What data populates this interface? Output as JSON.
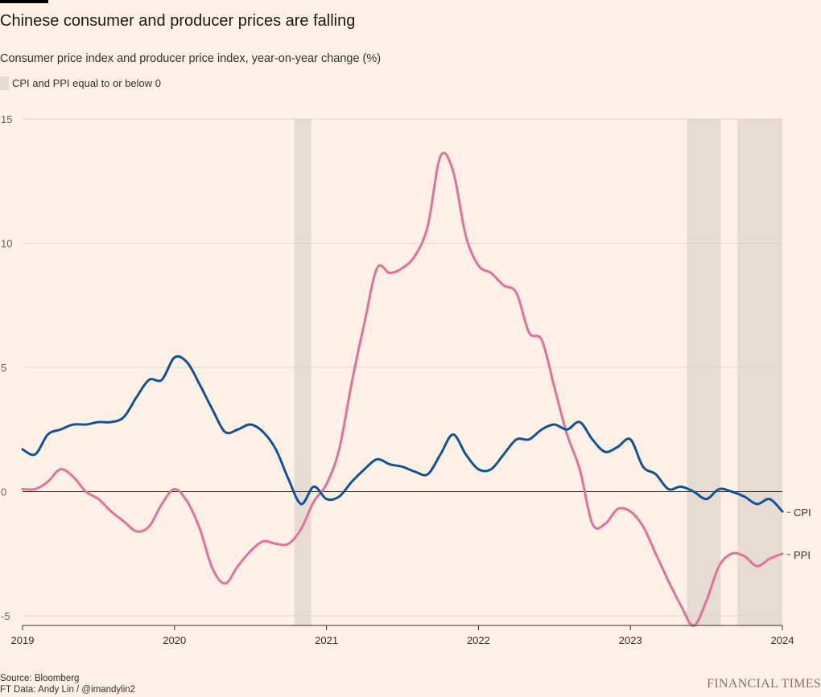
{
  "title": "Chinese consumer and producer prices are falling",
  "subtitle": "Consumer price index and producer price index, year-on-year change (%)",
  "legend": {
    "shaded_label": "CPI and PPI equal to or below 0"
  },
  "footer": {
    "source": "Source: Bloomberg",
    "credit": "FT Data: Andy Lin / @imandylin2",
    "brand": "FINANCIAL TIMES"
  },
  "colors": {
    "background": "#fff1e5",
    "cpi": "#0f5499",
    "ppi": "#e3719c",
    "shade": "#e6dcd2",
    "grid": "#d6cfc8",
    "zero_line": "#33302e"
  },
  "chart_data": {
    "type": "line",
    "title": "Chinese consumer and producer prices are falling",
    "subtitle": "Consumer price index and producer price index, year-on-year change (%)",
    "x_ticks": [
      "2019",
      "2020",
      "2021",
      "2022",
      "2023",
      "2024"
    ],
    "y_ticks": [
      "15",
      "10",
      "5",
      "0",
      "-5"
    ],
    "xlim": [
      "2019-01",
      "2024-01"
    ],
    "ylim": [
      -5.5,
      15
    ],
    "grid": true,
    "x": [
      "2019-01",
      "2019-02",
      "2019-03",
      "2019-04",
      "2019-05",
      "2019-06",
      "2019-07",
      "2019-08",
      "2019-09",
      "2019-10",
      "2019-11",
      "2019-12",
      "2020-01",
      "2020-02",
      "2020-03",
      "2020-04",
      "2020-05",
      "2020-06",
      "2020-07",
      "2020-08",
      "2020-09",
      "2020-10",
      "2020-11",
      "2020-12",
      "2021-01",
      "2021-02",
      "2021-03",
      "2021-04",
      "2021-05",
      "2021-06",
      "2021-07",
      "2021-08",
      "2021-09",
      "2021-10",
      "2021-11",
      "2021-12",
      "2022-01",
      "2022-02",
      "2022-03",
      "2022-04",
      "2022-05",
      "2022-06",
      "2022-07",
      "2022-08",
      "2022-09",
      "2022-10",
      "2022-11",
      "2022-12",
      "2023-01",
      "2023-02",
      "2023-03",
      "2023-04",
      "2023-05",
      "2023-06",
      "2023-07",
      "2023-08",
      "2023-09",
      "2023-10",
      "2023-11",
      "2023-12",
      "2024-01"
    ],
    "series": [
      {
        "name": "CPI",
        "values": [
          1.7,
          1.5,
          2.3,
          2.5,
          2.7,
          2.7,
          2.8,
          2.8,
          3.0,
          3.8,
          4.5,
          4.5,
          5.4,
          5.2,
          4.3,
          3.3,
          2.4,
          2.5,
          2.7,
          2.4,
          1.7,
          0.5,
          -0.5,
          0.2,
          -0.3,
          -0.2,
          0.4,
          0.9,
          1.3,
          1.1,
          1.0,
          0.8,
          0.7,
          1.5,
          2.3,
          1.5,
          0.9,
          0.9,
          1.5,
          2.1,
          2.1,
          2.5,
          2.7,
          2.5,
          2.8,
          2.1,
          1.6,
          1.8,
          2.1,
          1.0,
          0.7,
          0.1,
          0.2,
          0.0,
          -0.3,
          0.1,
          0.0,
          -0.2,
          -0.5,
          -0.3,
          -0.8
        ]
      },
      {
        "name": "PPI",
        "values": [
          0.1,
          0.1,
          0.4,
          0.9,
          0.6,
          0.0,
          -0.3,
          -0.8,
          -1.2,
          -1.6,
          -1.4,
          -0.5,
          0.1,
          -0.4,
          -1.5,
          -3.1,
          -3.7,
          -3.0,
          -2.4,
          -2.0,
          -2.1,
          -2.1,
          -1.5,
          -0.4,
          0.3,
          1.7,
          4.4,
          6.8,
          9.0,
          8.8,
          9.0,
          9.5,
          10.7,
          13.5,
          12.9,
          10.3,
          9.1,
          8.8,
          8.3,
          8.0,
          6.4,
          6.1,
          4.2,
          2.3,
          0.9,
          -1.3,
          -1.3,
          -0.7,
          -0.8,
          -1.4,
          -2.5,
          -3.6,
          -4.6,
          -5.4,
          -4.4,
          -3.0,
          -2.5,
          -2.6,
          -3.0,
          -2.7,
          -2.5
        ]
      }
    ],
    "shaded_periods": [
      {
        "label": "CPI and PPI equal to or below 0",
        "start": "2020-10-15",
        "end": "2020-11-25"
      },
      {
        "label": "CPI and PPI equal to or below 0",
        "start": "2023-05-15",
        "end": "2023-08-05"
      },
      {
        "label": "CPI and PPI equal to or below 0",
        "start": "2023-09-15",
        "end": "2024-01-01"
      }
    ]
  }
}
